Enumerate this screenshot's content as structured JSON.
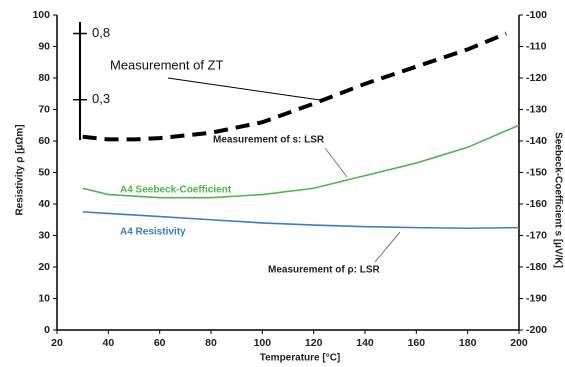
{
  "chart_data": {
    "type": "line",
    "x_label": "Temperature [°C]",
    "y_label": "Resistivity ρ [µΩm]",
    "y2_label": "Seebeck-Coefficient s [µV/K]",
    "xlim": [
      20,
      200
    ],
    "xticks": [
      20,
      40,
      60,
      80,
      100,
      120,
      140,
      160,
      180,
      200
    ],
    "ylim": [
      0,
      100
    ],
    "yticks": [
      0,
      10,
      20,
      30,
      40,
      50,
      60,
      70,
      80,
      90,
      100
    ],
    "y2lim": [
      -200,
      -100
    ],
    "y2ticks": [
      -200,
      -190,
      -180,
      -170,
      -160,
      -150,
      -140,
      -130,
      -120,
      -110,
      -100
    ],
    "y3lim": [
      -1.44,
      0.94
    ],
    "y3ticks": [
      {
        "value": 0.3,
        "label": "0,3"
      },
      {
        "value": 0.8,
        "label": "0,8"
      }
    ],
    "series": [
      {
        "name": "A4 Resistivity",
        "color": "#3a7fc4",
        "x": [
          30,
          40,
          60,
          80,
          100,
          120,
          140,
          160,
          180,
          200
        ],
        "values": [
          37.5,
          37,
          36,
          35,
          34,
          33.3,
          32.8,
          32.5,
          32.3,
          32.5
        ]
      },
      {
        "name": "A4 Seebeck-Coefficient",
        "color": "#4cb84c",
        "axis": "y2",
        "x": [
          30,
          40,
          60,
          80,
          100,
          120,
          140,
          160,
          180,
          200
        ],
        "values": [
          -155,
          -157,
          -158,
          -158,
          -157,
          -155,
          -151,
          -147,
          -142,
          -135
        ]
      },
      {
        "color": "#000000",
        "axis": "y3",
        "dashed": true,
        "x": [
          30,
          40,
          50,
          60,
          80,
          100,
          120,
          140,
          160,
          180,
          195
        ],
        "values": [
          0.02,
          0.0,
          0.0,
          0.01,
          0.05,
          0.13,
          0.27,
          0.42,
          0.55,
          0.68,
          0.8
        ]
      }
    ],
    "annotations": [
      "Measurement of ZT",
      "Measurement of s: LSR",
      "Measurement of ρ: LSR"
    ]
  }
}
